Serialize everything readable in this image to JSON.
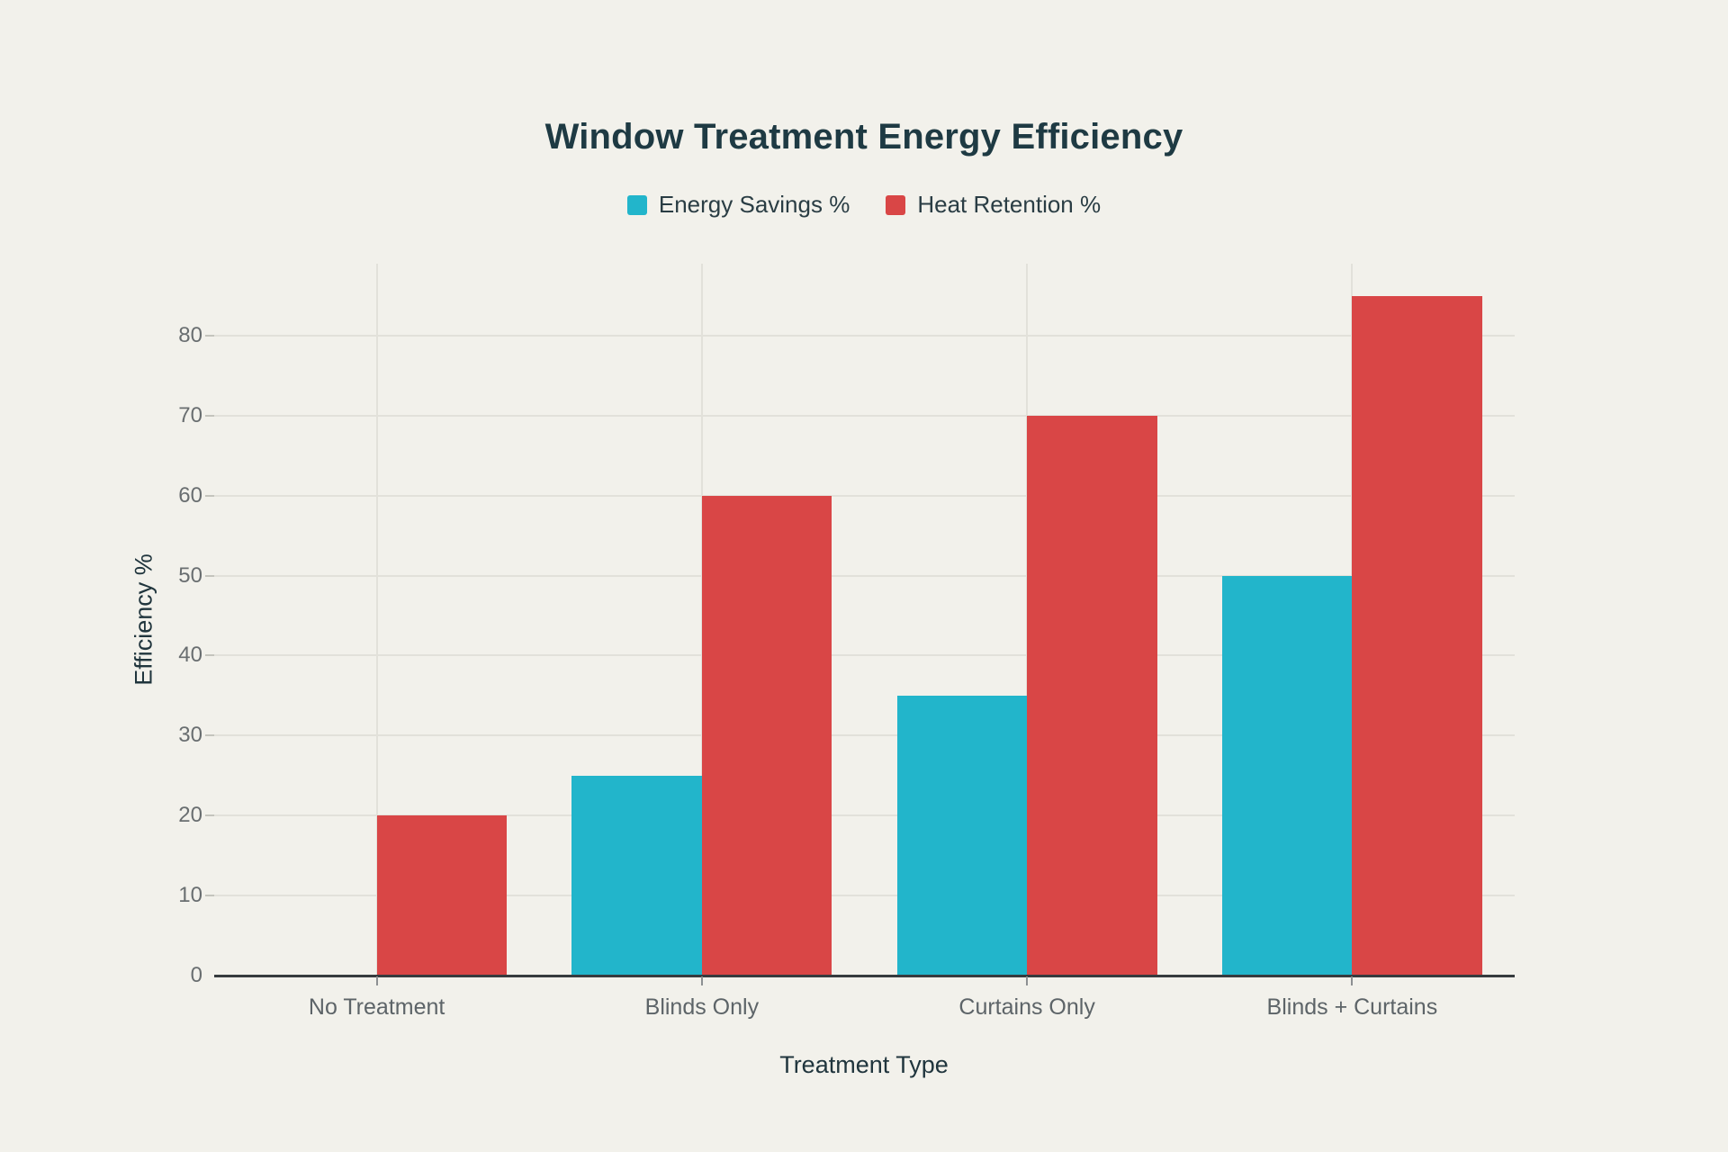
{
  "page": {
    "background": "#f2f1eb"
  },
  "colors": {
    "title": "#1e3a43",
    "axis_title": "#20353d",
    "tick_label": "#696e70",
    "category_label": "#5d6468",
    "legend_label": "#2a3d44",
    "grid": "#e2e1da",
    "axis_line": "#363b3e",
    "ytick_mark": "#c4c4bd",
    "xtick_mark": "#8d9092",
    "series_teal": "#22b5cb",
    "series_red": "#d94646"
  },
  "chart_data": {
    "type": "bar",
    "title": "Window Treatment Energy Efficiency",
    "xlabel": "Treatment Type",
    "ylabel": "Efficiency %",
    "categories": [
      "No Treatment",
      "Blinds Only",
      "Curtains Only",
      "Blinds + Curtains"
    ],
    "series": [
      {
        "name": "Energy Savings %",
        "color": "#22b5cb",
        "values": [
          0,
          25,
          35,
          50
        ]
      },
      {
        "name": "Heat Retention %",
        "color": "#d94646",
        "values": [
          20,
          60,
          70,
          85
        ]
      }
    ],
    "ylim": [
      0,
      89
    ],
    "yticks": [
      0,
      10,
      20,
      30,
      40,
      50,
      60,
      70,
      80
    ],
    "grid": true,
    "legend_position": "top"
  }
}
